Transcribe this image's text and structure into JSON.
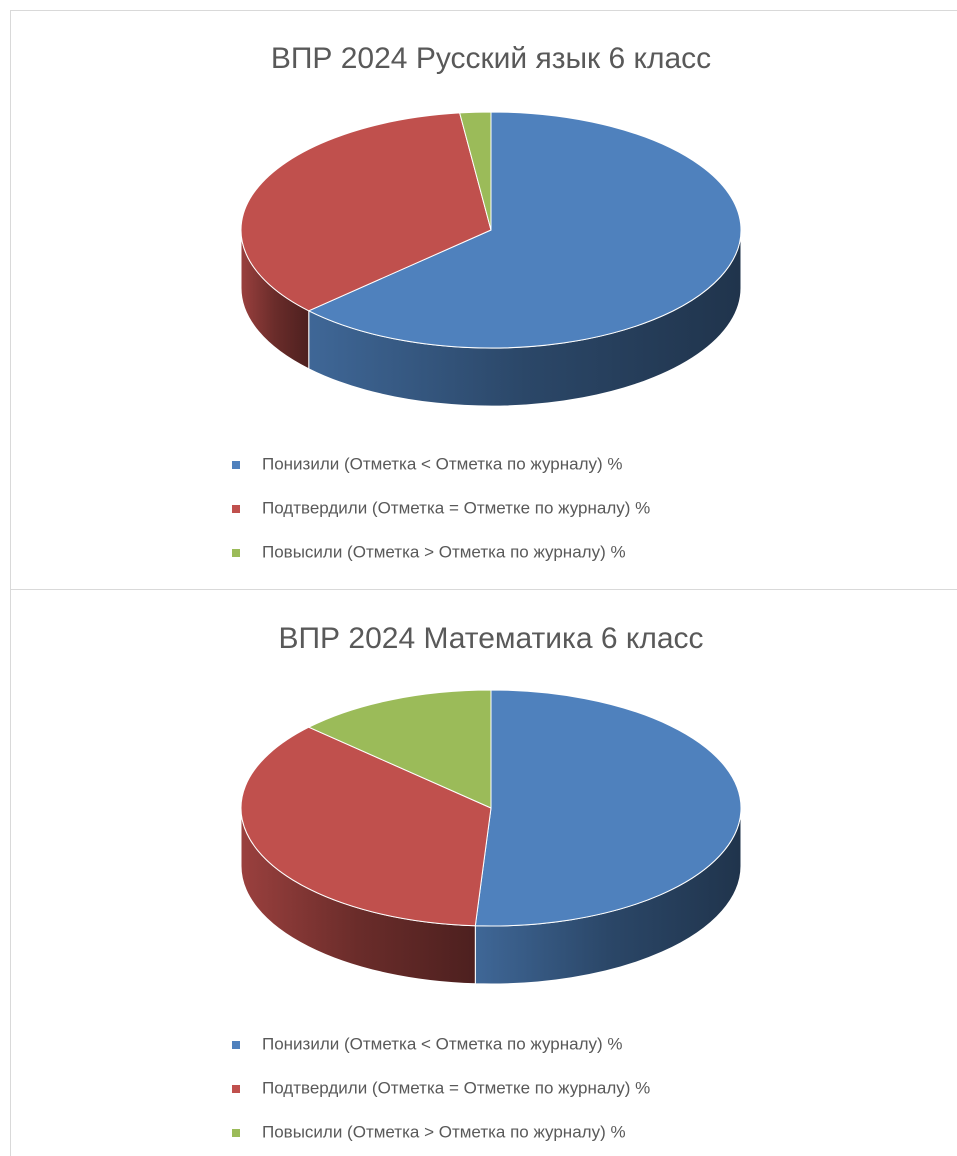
{
  "chart_data": [
    {
      "type": "pie",
      "title": "ВПР 2024 Русский язык 6 класс",
      "categories": [
        "Понизили (Отметка < Отметка по журналу) %",
        "Подтвердили (Отметка = Отметке по журналу) %",
        "Повысили (Отметка > Отметка по журналу) %"
      ],
      "values": [
        63,
        35,
        2
      ],
      "colors": [
        "#4f81bd",
        "#c0504d",
        "#9bbb59"
      ],
      "legend": "bottom"
    },
    {
      "type": "pie",
      "title": "ВПР 2024 Математика 6 класс",
      "categories": [
        "Понизили (Отметка < Отметка по журналу) %",
        "Подтвердили (Отметка = Отметке по журналу) %",
        "Повысили (Отметка > Отметка по журналу) %"
      ],
      "values": [
        51,
        36,
        13
      ],
      "colors": [
        "#4f81bd",
        "#c0504d",
        "#9bbb59"
      ],
      "legend": "bottom"
    }
  ]
}
